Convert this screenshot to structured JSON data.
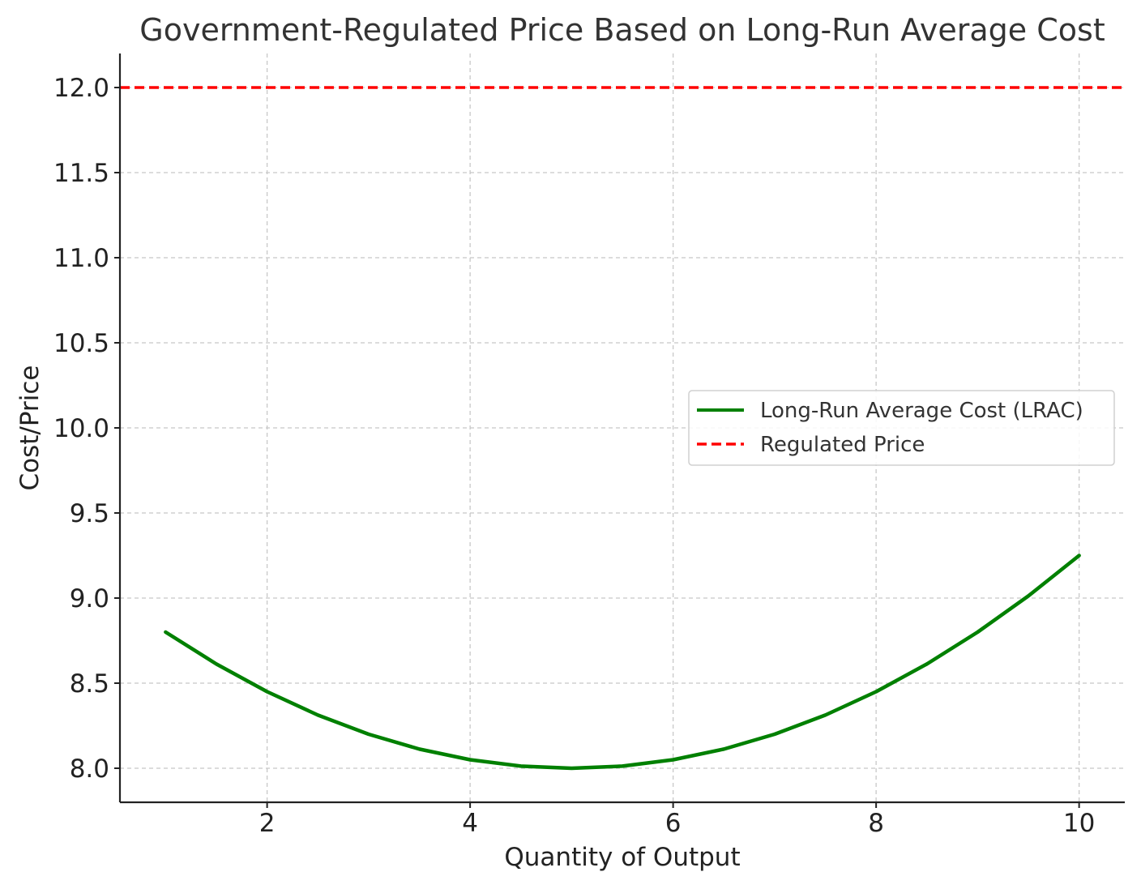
{
  "chart_data": {
    "type": "line",
    "title": "Government-Regulated Price Based on Long-Run Average Cost",
    "xlabel": "Quantity of Output",
    "ylabel": "Cost/Price",
    "xlim": [
      0.55,
      10.45
    ],
    "ylim": [
      7.8,
      12.2
    ],
    "xticks": [
      2,
      4,
      6,
      8,
      10
    ],
    "xtick_labels": [
      "2",
      "4",
      "6",
      "8",
      "10"
    ],
    "yticks": [
      8.0,
      8.5,
      9.0,
      9.5,
      10.0,
      10.5,
      11.0,
      11.5,
      12.0
    ],
    "ytick_labels": [
      "8.0",
      "8.5",
      "9.0",
      "9.5",
      "10.0",
      "10.5",
      "11.0",
      "11.5",
      "12.0"
    ],
    "grid": true,
    "legend_position": "center-right",
    "series": [
      {
        "name": "Long-Run Average Cost (LRAC)",
        "style": "solid",
        "color": "#008000",
        "x": [
          1,
          1.5,
          2,
          2.5,
          3,
          3.5,
          4,
          4.5,
          5,
          5.5,
          6,
          6.5,
          7,
          7.5,
          8,
          8.5,
          9,
          9.5,
          10
        ],
        "y": [
          8.8,
          8.6125,
          8.45,
          8.3125,
          8.2,
          8.1125,
          8.05,
          8.0125,
          8.0,
          8.0125,
          8.05,
          8.1125,
          8.2,
          8.3125,
          8.45,
          8.6125,
          8.8,
          9.0125,
          9.25
        ]
      },
      {
        "name": "Regulated Price",
        "style": "dashed",
        "color": "#ff0000",
        "y_constant": 12.0
      }
    ]
  }
}
